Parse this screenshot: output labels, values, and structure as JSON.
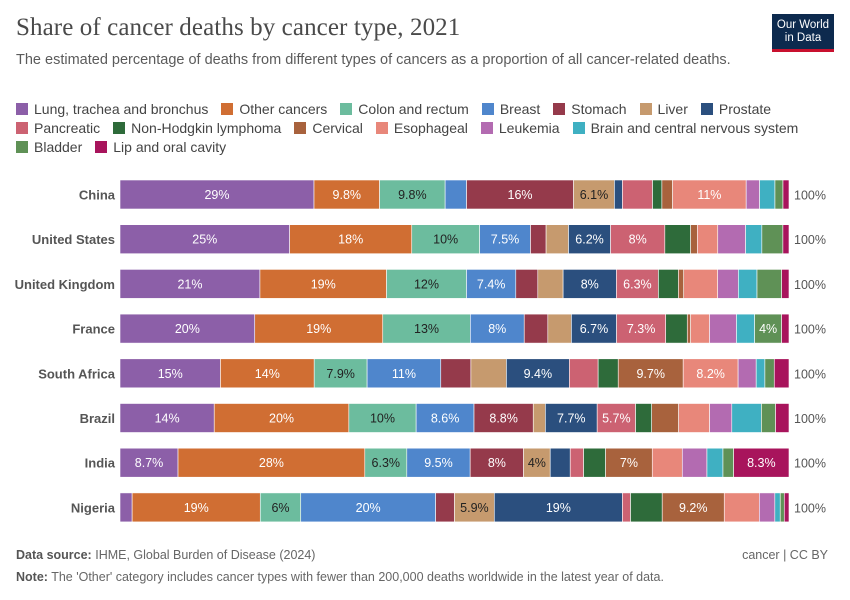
{
  "header": {
    "title": "Share of cancer deaths by cancer type, 2021",
    "subtitle": "The estimated percentage of deaths from different types of cancers as a proportion of all cancer-related deaths.",
    "logo_line1": "Our World",
    "logo_line2": "in Data"
  },
  "footer": {
    "source_label": "Data source:",
    "source_text": "IHME, Global Burden of Disease (2024)",
    "license": "cancer | CC BY",
    "note_label": "Note:",
    "note_text": "The 'Other' category includes cancer types with fewer than 200,000 deaths worldwide in the latest year of data."
  },
  "chart_data": {
    "type": "bar",
    "orientation": "horizontal",
    "stacked": true,
    "normalized": true,
    "categories": [
      "China",
      "United States",
      "United Kingdom",
      "France",
      "South Africa",
      "Brazil",
      "India",
      "Nigeria"
    ],
    "total_label": "100%",
    "series": [
      {
        "name": "Lung, trachea and bronchus",
        "color": "#8c5fa8",
        "values": [
          29,
          25,
          21,
          20,
          15,
          14,
          8.7,
          1.8
        ]
      },
      {
        "name": "Other cancers",
        "color": "#d06e33",
        "values": [
          9.8,
          18,
          19,
          19,
          14,
          20,
          28,
          19
        ]
      },
      {
        "name": "Colon and rectum",
        "color": "#6cbc9e",
        "values": [
          9.8,
          10,
          12,
          13,
          7.9,
          10,
          6.3,
          6
        ]
      },
      {
        "name": "Breast",
        "color": "#4f86cc",
        "values": [
          3.2,
          7.5,
          7.4,
          8,
          11,
          8.6,
          9.5,
          20
        ]
      },
      {
        "name": "Stomach",
        "color": "#953a4b",
        "values": [
          16,
          2.3,
          3.3,
          3.5,
          4.5,
          8.8,
          8,
          2.8
        ]
      },
      {
        "name": "Liver",
        "color": "#c69a6e",
        "values": [
          6.1,
          3.3,
          3.8,
          3.5,
          5.3,
          1.8,
          4,
          5.9
        ]
      },
      {
        "name": "Prostate",
        "color": "#2b4f7e",
        "values": [
          1.2,
          6.2,
          8,
          6.7,
          9.4,
          7.7,
          3,
          19
        ]
      },
      {
        "name": "Pancreatic",
        "color": "#cc6272",
        "values": [
          4.5,
          8,
          6.3,
          7.3,
          4.3,
          5.7,
          2,
          1.2
        ]
      },
      {
        "name": "Non-Hodgkin lymphoma",
        "color": "#2e6b3a",
        "values": [
          1.4,
          3.8,
          3,
          3.2,
          3,
          2.4,
          3.3,
          4.7
        ]
      },
      {
        "name": "Cervical",
        "color": "#a8623d",
        "values": [
          1.6,
          1,
          0.8,
          0.5,
          9.7,
          4,
          7,
          9.2
        ]
      },
      {
        "name": "Esophageal",
        "color": "#e8877a",
        "values": [
          11,
          3,
          5.1,
          2.8,
          8.2,
          4.6,
          4.5,
          5.2
        ]
      },
      {
        "name": "Leukemia",
        "color": "#b36bb1",
        "values": [
          2,
          4.1,
          3.1,
          4,
          2.7,
          3.3,
          3.7,
          2.3
        ]
      },
      {
        "name": "Brain and central nervous system",
        "color": "#3fb0c2",
        "values": [
          2.3,
          2.4,
          2.8,
          2.7,
          1.3,
          4.4,
          2.4,
          0.8
        ]
      },
      {
        "name": "Bladder",
        "color": "#5f9156",
        "values": [
          1.2,
          3.1,
          3.7,
          4,
          1.4,
          2.1,
          1.6,
          0.6
        ]
      },
      {
        "name": "Lip and oral cavity",
        "color": "#a8145c",
        "values": [
          0.9,
          0.9,
          1.1,
          1.1,
          2.2,
          2,
          8.3,
          0.7
        ]
      }
    ],
    "data_labels": [
      [
        "29%",
        "9.8%",
        "9.8%",
        "",
        "16%",
        "6.1%",
        "",
        "",
        "",
        "",
        "11%",
        "",
        "",
        "",
        ""
      ],
      [
        "25%",
        "18%",
        "10%",
        "7.5%",
        "",
        "",
        "6.2%",
        "8%",
        "",
        "",
        "",
        "",
        "",
        "",
        ""
      ],
      [
        "21%",
        "19%",
        "12%",
        "7.4%",
        "",
        "",
        "8%",
        "6.3%",
        "",
        "",
        "",
        "",
        "",
        "",
        ""
      ],
      [
        "20%",
        "19%",
        "13%",
        "8%",
        "",
        "",
        "6.7%",
        "7.3%",
        "",
        "",
        "",
        "",
        "",
        "4%",
        ""
      ],
      [
        "15%",
        "14%",
        "7.9%",
        "11%",
        "",
        "",
        "9.4%",
        "",
        "",
        "9.7%",
        "8.2%",
        "",
        "",
        "",
        ""
      ],
      [
        "14%",
        "20%",
        "10%",
        "8.6%",
        "8.8%",
        "",
        "7.7%",
        "5.7%",
        "",
        "",
        "",
        "",
        "",
        "",
        ""
      ],
      [
        "8.7%",
        "28%",
        "6.3%",
        "9.5%",
        "8%",
        "4%",
        "",
        "",
        "",
        "7%",
        "",
        "",
        "",
        "",
        "8.3%"
      ],
      [
        "",
        "19%",
        "6%",
        "20%",
        "",
        "5.9%",
        "19%",
        "",
        "",
        "9.2%",
        "",
        "",
        "",
        "",
        ""
      ]
    ],
    "grid": false,
    "legend_position": "top"
  }
}
